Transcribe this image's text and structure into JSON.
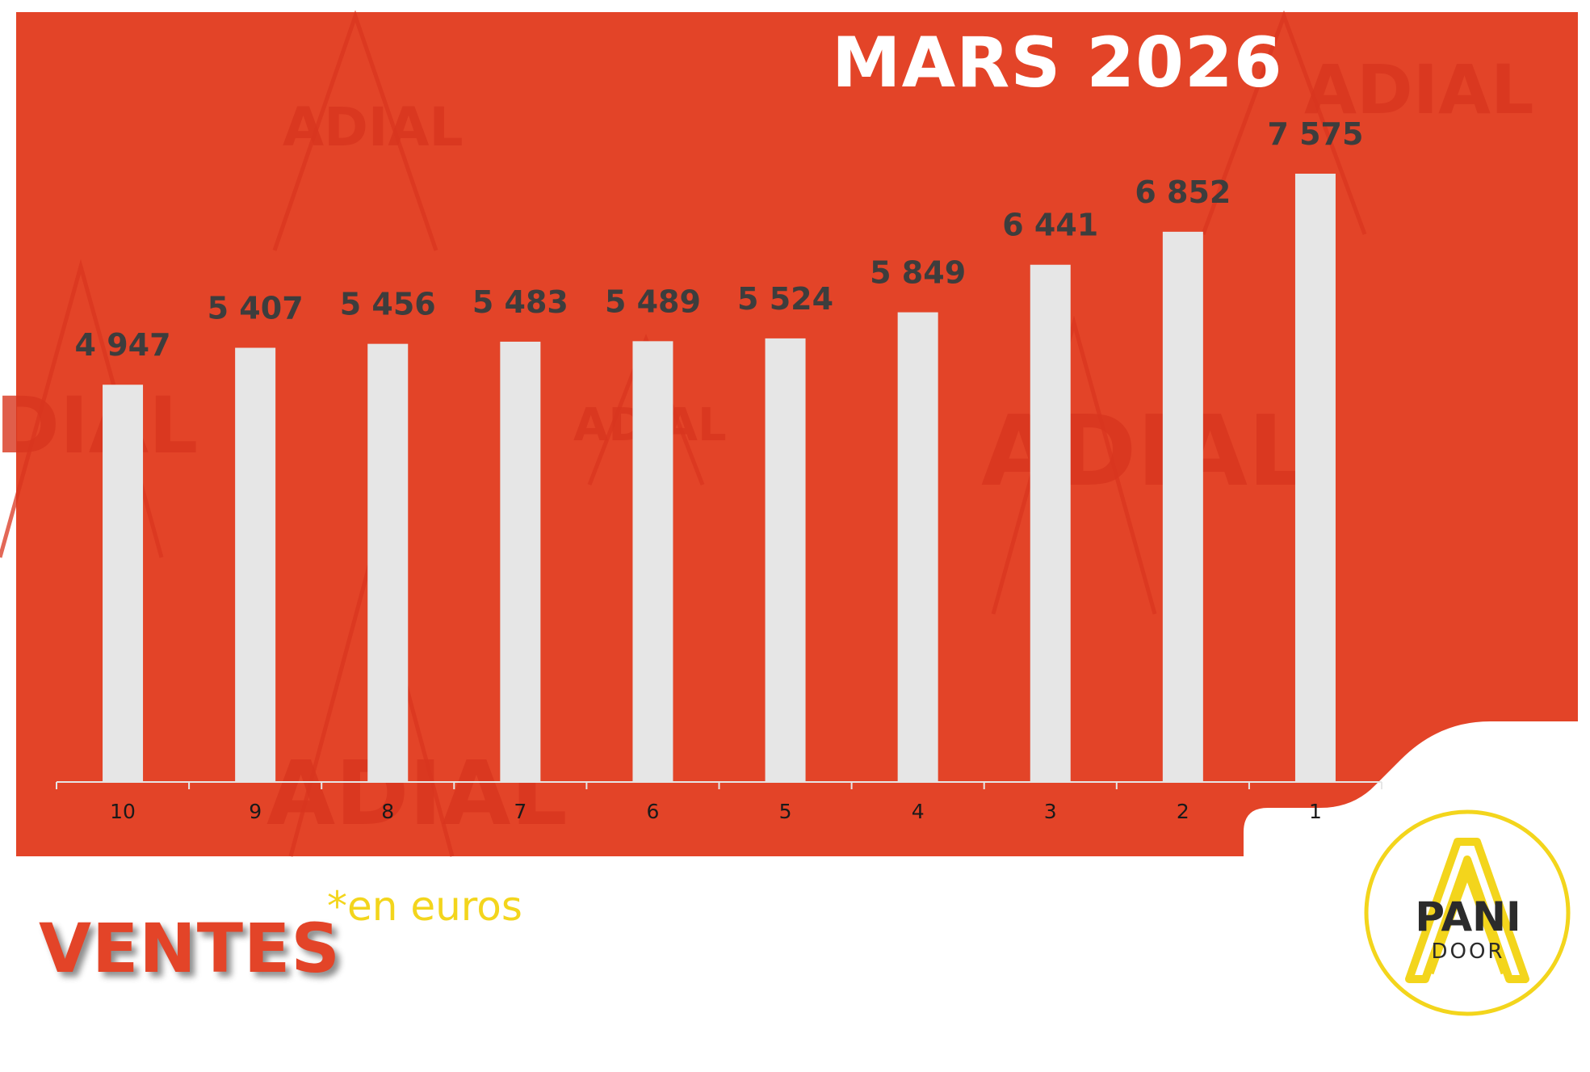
{
  "header": {
    "title": "MARS 2026"
  },
  "footer": {
    "ventes_label": "VENTES",
    "unit_note": "*en euros"
  },
  "logo": {
    "line1": "PANI",
    "line2": "DOOR"
  },
  "watermark": {
    "text": "ADIAL"
  },
  "colors": {
    "background_red": "#e34428",
    "bar_fill": "#e6e6e6",
    "value_label": "#3d3d3d",
    "unit_yellow": "#f3d51c",
    "logo_dark": "#2b2b2b"
  },
  "chart_data": {
    "type": "bar",
    "categories": [
      "10",
      "9",
      "8",
      "7",
      "6",
      "5",
      "4",
      "3",
      "2",
      "1"
    ],
    "values": [
      4947,
      5407,
      5456,
      5483,
      5489,
      5524,
      5849,
      6441,
      6852,
      7575
    ],
    "value_labels": [
      "4 947",
      "5 407",
      "5 456",
      "5 483",
      "5 489",
      "5 524",
      "5 849",
      "6 441",
      "6 852",
      "7 575"
    ],
    "ylim": [
      0,
      7575
    ],
    "grid": false,
    "legend": "none"
  }
}
